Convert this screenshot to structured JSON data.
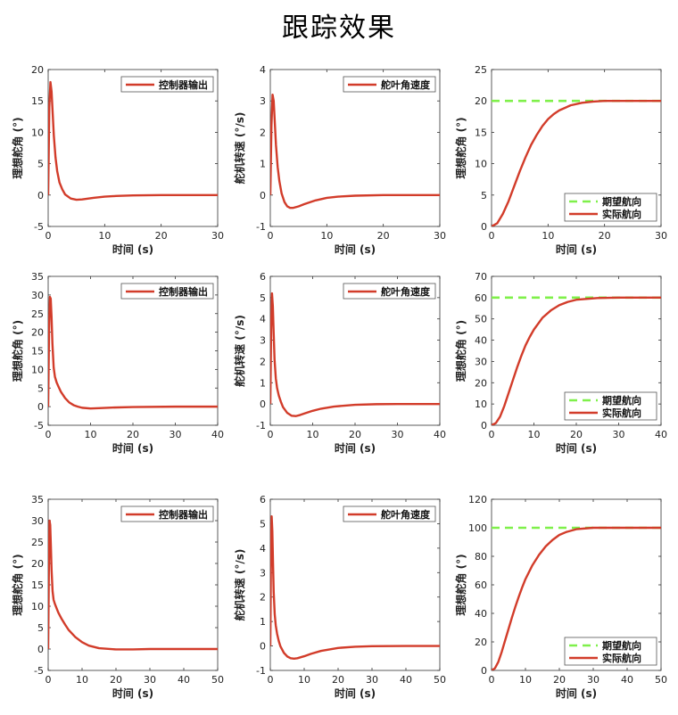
{
  "title": "跟踪效果",
  "colors": {
    "actual": "#d23c2a",
    "desired": "#7ff04a",
    "axis": "#333333"
  },
  "chart_data": [
    {
      "type": "line",
      "row": 0,
      "col": 0,
      "xlim": [
        0,
        30
      ],
      "ylim": [
        -5,
        20
      ],
      "xticks": [
        0,
        10,
        20,
        30
      ],
      "yticks": [
        -5,
        0,
        5,
        10,
        15,
        20
      ],
      "xlabel": "时间 (s)",
      "ylabel": "理想舵角 (°)",
      "legend_position": "top-right",
      "series": [
        {
          "name": "控制器输出",
          "kind": "actual",
          "x": [
            0,
            0.2,
            0.4,
            0.6,
            0.8,
            1.0,
            1.3,
            1.6,
            2.0,
            2.5,
            3,
            4,
            5,
            6,
            8,
            10,
            12,
            15,
            20,
            25,
            30
          ],
          "y": [
            0,
            14,
            18,
            16.5,
            13,
            9.5,
            6,
            3.8,
            2,
            0.9,
            0.1,
            -0.55,
            -0.75,
            -0.7,
            -0.45,
            -0.25,
            -0.15,
            -0.05,
            0,
            0,
            0
          ]
        }
      ]
    },
    {
      "type": "line",
      "row": 0,
      "col": 1,
      "xlim": [
        0,
        30
      ],
      "ylim": [
        -1,
        4
      ],
      "xticks": [
        0,
        10,
        20,
        30
      ],
      "yticks": [
        -1,
        0,
        1,
        2,
        3,
        4
      ],
      "xlabel": "时间 (s)",
      "ylabel": "舵机转速 (°/s)",
      "legend_position": "top-right",
      "series": [
        {
          "name": "舵叶角速度",
          "kind": "actual",
          "x": [
            0,
            0.2,
            0.4,
            0.6,
            0.8,
            1.0,
            1.3,
            1.6,
            2.0,
            2.5,
            3,
            3.5,
            4,
            5,
            6,
            8,
            10,
            12,
            15,
            20,
            25,
            30
          ],
          "y": [
            0,
            2.2,
            3.2,
            3.0,
            2.3,
            1.6,
            0.9,
            0.45,
            0.05,
            -0.22,
            -0.36,
            -0.41,
            -0.41,
            -0.36,
            -0.29,
            -0.17,
            -0.09,
            -0.05,
            -0.02,
            0,
            0,
            0
          ]
        }
      ]
    },
    {
      "type": "line",
      "row": 0,
      "col": 2,
      "xlim": [
        0,
        30
      ],
      "ylim": [
        0,
        25
      ],
      "xticks": [
        0,
        10,
        20,
        30
      ],
      "yticks": [
        0,
        5,
        10,
        15,
        20,
        25
      ],
      "xlabel": "时间 (s)",
      "ylabel": "理想舵角 (°)",
      "legend_position": "bottom-right",
      "series": [
        {
          "name": "期望航向",
          "kind": "desired",
          "x": [
            0,
            30
          ],
          "y": [
            20,
            20
          ]
        },
        {
          "name": "实际航向",
          "kind": "actual",
          "x": [
            0,
            1,
            2,
            3,
            4,
            5,
            6,
            7,
            8,
            9,
            10,
            11,
            12,
            14,
            16,
            18,
            20,
            25,
            30
          ],
          "y": [
            0,
            0.5,
            2,
            4,
            6.4,
            8.8,
            11,
            13,
            14.6,
            16,
            17.1,
            17.9,
            18.5,
            19.3,
            19.7,
            19.9,
            20,
            20,
            20
          ]
        }
      ]
    },
    {
      "type": "line",
      "row": 1,
      "col": 0,
      "xlim": [
        0,
        40
      ],
      "ylim": [
        -5,
        35
      ],
      "xticks": [
        0,
        10,
        20,
        30,
        40
      ],
      "yticks": [
        -5,
        0,
        5,
        10,
        15,
        20,
        25,
        30,
        35
      ],
      "xlabel": "时间 (s)",
      "ylabel": "理想舵角 (°)",
      "legend_position": "top-right",
      "series": [
        {
          "name": "控制器输出",
          "kind": "actual",
          "x": [
            0,
            0.2,
            0.4,
            0.6,
            0.8,
            1.0,
            1.3,
            1.6,
            2,
            2.5,
            3,
            4,
            5,
            6,
            7,
            8,
            10,
            12,
            15,
            20,
            30,
            40
          ],
          "y": [
            0,
            20,
            29.5,
            29,
            24,
            17,
            10.5,
            8,
            6.5,
            5.2,
            4,
            2.3,
            1.1,
            0.4,
            0,
            -0.3,
            -0.5,
            -0.4,
            -0.25,
            -0.1,
            0,
            0
          ]
        }
      ]
    },
    {
      "type": "line",
      "row": 1,
      "col": 1,
      "xlim": [
        0,
        40
      ],
      "ylim": [
        -1,
        6
      ],
      "xticks": [
        0,
        10,
        20,
        30,
        40
      ],
      "yticks": [
        -1,
        0,
        1,
        2,
        3,
        4,
        5,
        6
      ],
      "xlabel": "时间 (s)",
      "ylabel": "舵机转速 (°/s)",
      "legend_position": "top-right",
      "series": [
        {
          "name": "舵叶角速度",
          "kind": "actual",
          "x": [
            0,
            0.2,
            0.4,
            0.6,
            0.8,
            1.0,
            1.3,
            1.6,
            2,
            2.5,
            3,
            4,
            5,
            6,
            7,
            8,
            10,
            12,
            15,
            20,
            25,
            30,
            40
          ],
          "y": [
            0,
            3.5,
            5.2,
            4.6,
            3.3,
            2.1,
            1.2,
            0.75,
            0.4,
            0.1,
            -0.15,
            -0.42,
            -0.55,
            -0.57,
            -0.52,
            -0.45,
            -0.32,
            -0.22,
            -0.12,
            -0.04,
            -0.01,
            0,
            0
          ]
        }
      ]
    },
    {
      "type": "line",
      "row": 1,
      "col": 2,
      "xlim": [
        0,
        40
      ],
      "ylim": [
        0,
        70
      ],
      "xticks": [
        0,
        10,
        20,
        30,
        40
      ],
      "yticks": [
        0,
        10,
        20,
        30,
        40,
        50,
        60,
        70
      ],
      "xlabel": "时间 (s)",
      "ylabel": "理想舵角 (°)",
      "legend_position": "bottom-right",
      "series": [
        {
          "name": "期望航向",
          "kind": "desired",
          "x": [
            0,
            40
          ],
          "y": [
            60,
            60
          ]
        },
        {
          "name": "实际航向",
          "kind": "actual",
          "x": [
            0,
            1,
            2,
            3,
            4,
            5,
            6,
            7,
            8,
            9,
            10,
            12,
            14,
            16,
            18,
            20,
            25,
            30,
            40
          ],
          "y": [
            0,
            1,
            4,
            9,
            15,
            21,
            27,
            32.5,
            37.5,
            41.5,
            45,
            50.5,
            54,
            56.5,
            58,
            59,
            59.8,
            60,
            60
          ]
        }
      ]
    },
    {
      "type": "line",
      "row": 2,
      "col": 0,
      "xlim": [
        0,
        50
      ],
      "ylim": [
        -5,
        35
      ],
      "xticks": [
        0,
        10,
        20,
        30,
        40,
        50
      ],
      "yticks": [
        -5,
        0,
        5,
        10,
        15,
        20,
        25,
        30,
        35
      ],
      "xlabel": "时间 (s)",
      "ylabel": "理想舵角 (°)",
      "legend_position": "top-right",
      "series": [
        {
          "name": "控制器输出",
          "kind": "actual",
          "x": [
            0,
            0.2,
            0.4,
            0.6,
            0.8,
            1.0,
            1.3,
            1.6,
            2,
            2.5,
            3,
            4,
            5,
            6,
            8,
            10,
            12,
            15,
            20,
            25,
            30,
            40,
            50
          ],
          "y": [
            0,
            18,
            30,
            29,
            24,
            18.5,
            13.5,
            11.5,
            10.5,
            9.5,
            8.5,
            7,
            5.7,
            4.5,
            2.8,
            1.6,
            0.8,
            0.2,
            -0.1,
            -0.1,
            0,
            0,
            0
          ]
        }
      ]
    },
    {
      "type": "line",
      "row": 2,
      "col": 1,
      "xlim": [
        0,
        50
      ],
      "ylim": [
        -1,
        6
      ],
      "xticks": [
        0,
        10,
        20,
        30,
        40,
        50
      ],
      "yticks": [
        -1,
        0,
        1,
        2,
        3,
        4,
        5,
        6
      ],
      "xlabel": "时间 (s)",
      "ylabel": "舵机转速 (°/s)",
      "legend_position": "top-right",
      "series": [
        {
          "name": "舵叶角速度",
          "kind": "actual",
          "x": [
            0,
            0.2,
            0.4,
            0.6,
            0.8,
            1.0,
            1.3,
            1.6,
            2,
            2.5,
            3,
            4,
            5,
            6,
            7,
            8,
            10,
            12,
            15,
            20,
            25,
            30,
            40,
            50
          ],
          "y": [
            0,
            3.6,
            5.3,
            4.7,
            3.4,
            2.2,
            1.3,
            0.85,
            0.5,
            0.2,
            -0.02,
            -0.28,
            -0.43,
            -0.5,
            -0.52,
            -0.5,
            -0.42,
            -0.32,
            -0.2,
            -0.08,
            -0.03,
            -0.01,
            0,
            0
          ]
        }
      ]
    },
    {
      "type": "line",
      "row": 2,
      "col": 2,
      "xlim": [
        0,
        50
      ],
      "ylim": [
        0,
        120
      ],
      "xticks": [
        0,
        10,
        20,
        30,
        40,
        50
      ],
      "yticks": [
        0,
        20,
        40,
        60,
        80,
        100,
        120
      ],
      "xlabel": "时间 (s)",
      "ylabel": "理想舵角 (°)",
      "legend_position": "bottom-right",
      "series": [
        {
          "name": "期望航向",
          "kind": "desired",
          "x": [
            0,
            50
          ],
          "y": [
            100,
            100
          ]
        },
        {
          "name": "实际航向",
          "kind": "actual",
          "x": [
            0,
            1,
            2,
            3,
            4,
            5,
            6,
            7,
            8,
            9,
            10,
            12,
            14,
            16,
            18,
            20,
            22,
            25,
            30,
            35,
            40,
            50
          ],
          "y": [
            0,
            1.5,
            6,
            13,
            21,
            29,
            37,
            44.5,
            51.5,
            58,
            64,
            73.5,
            81,
            87,
            91.5,
            95,
            97,
            99,
            100,
            100,
            100,
            100
          ]
        }
      ]
    }
  ]
}
